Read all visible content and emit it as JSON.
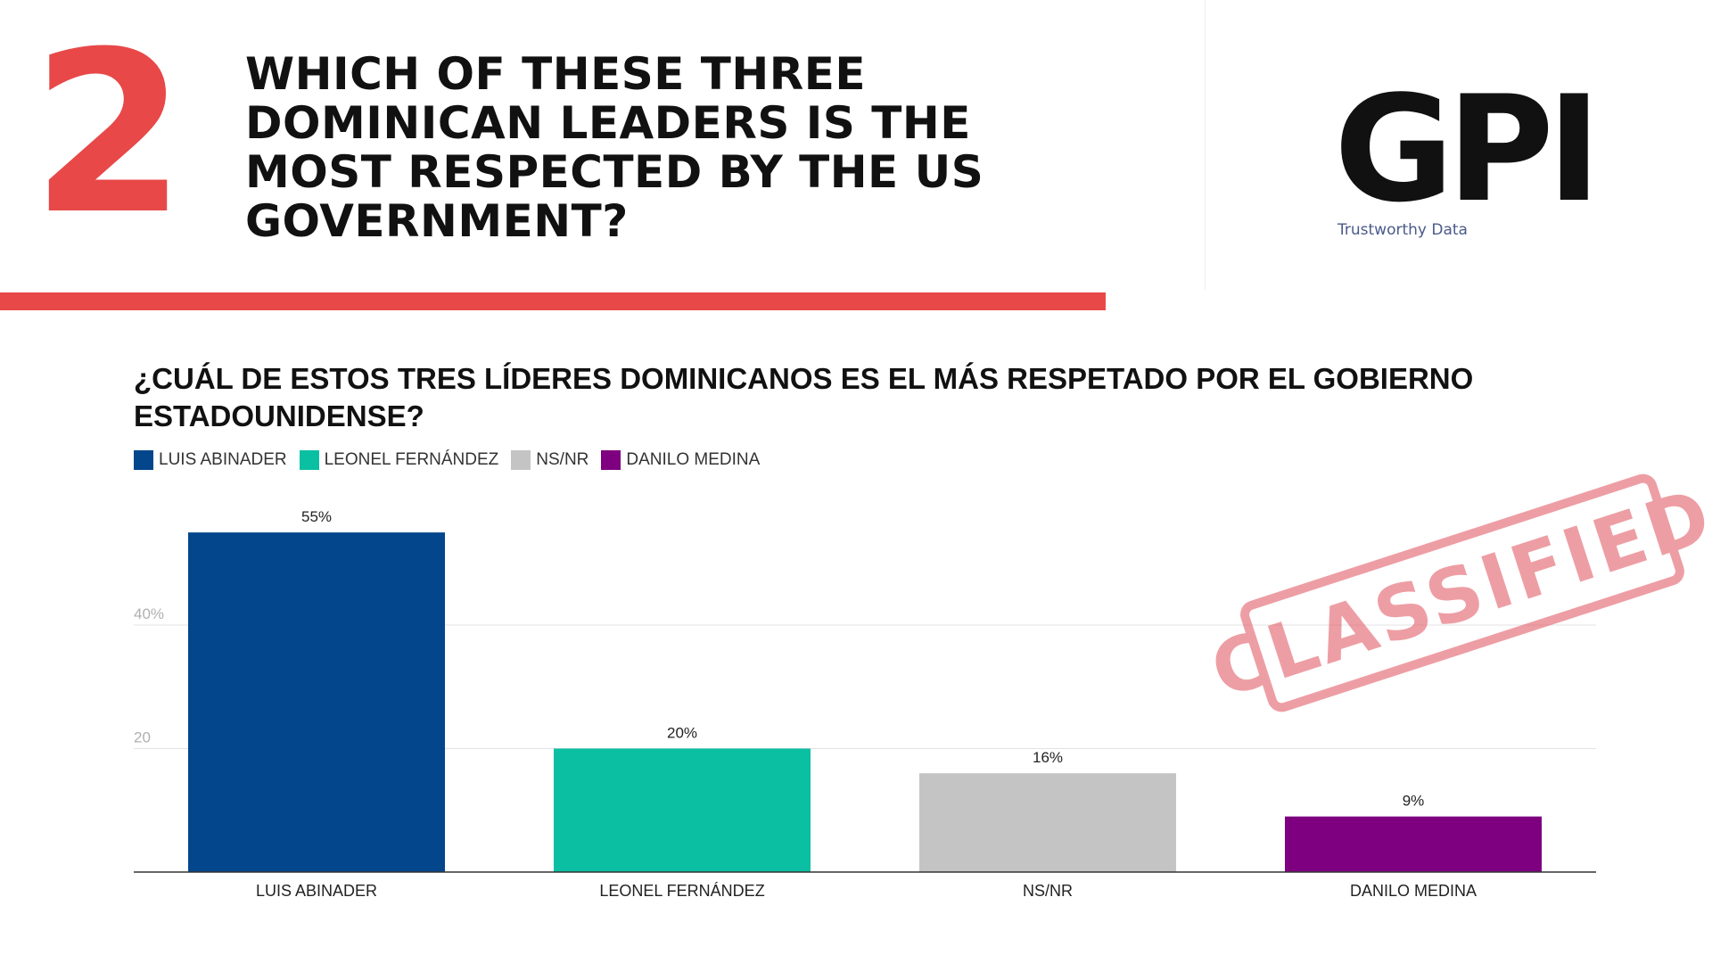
{
  "header": {
    "number": "2",
    "headline": "WHICH OF THESE THREE DOMINICAN LEADERS IS THE MOST RESPECTED BY THE US GOVERNMENT?"
  },
  "logo": {
    "text": "GPI",
    "tagline": "Trustworthy Data"
  },
  "stamp": {
    "text": "CLASSIFIED",
    "color": "#e0505a"
  },
  "colors": {
    "accent": "#e84848"
  },
  "chart_data": {
    "type": "bar",
    "title": "¿CUÁL DE ESTOS TRES LÍDERES DOMINICANOS ES EL MÁS RESPETADO POR EL GOBIERNO ESTADOUNIDENSE?",
    "categories": [
      "LUIS ABINADER",
      "LEONEL FERNÁNDEZ",
      "NS/NR",
      "DANILO MEDINA"
    ],
    "values": [
      55,
      20,
      16,
      9
    ],
    "value_labels": [
      "55%",
      "20%",
      "16%",
      "9%"
    ],
    "colors": [
      "#03468c",
      "#0bbfa3",
      "#c4c4c4",
      "#7e0080"
    ],
    "legend": [
      "LUIS ABINADER",
      "LEONEL FERNÁNDEZ",
      "NS/NR",
      "DANILO MEDINA"
    ],
    "legend_position": "top-left",
    "yticks": [
      20,
      40
    ],
    "ytick_labels": [
      "20",
      "40%"
    ],
    "ylim": [
      0,
      55
    ],
    "xlabel": "",
    "ylabel": "",
    "grid": true
  }
}
